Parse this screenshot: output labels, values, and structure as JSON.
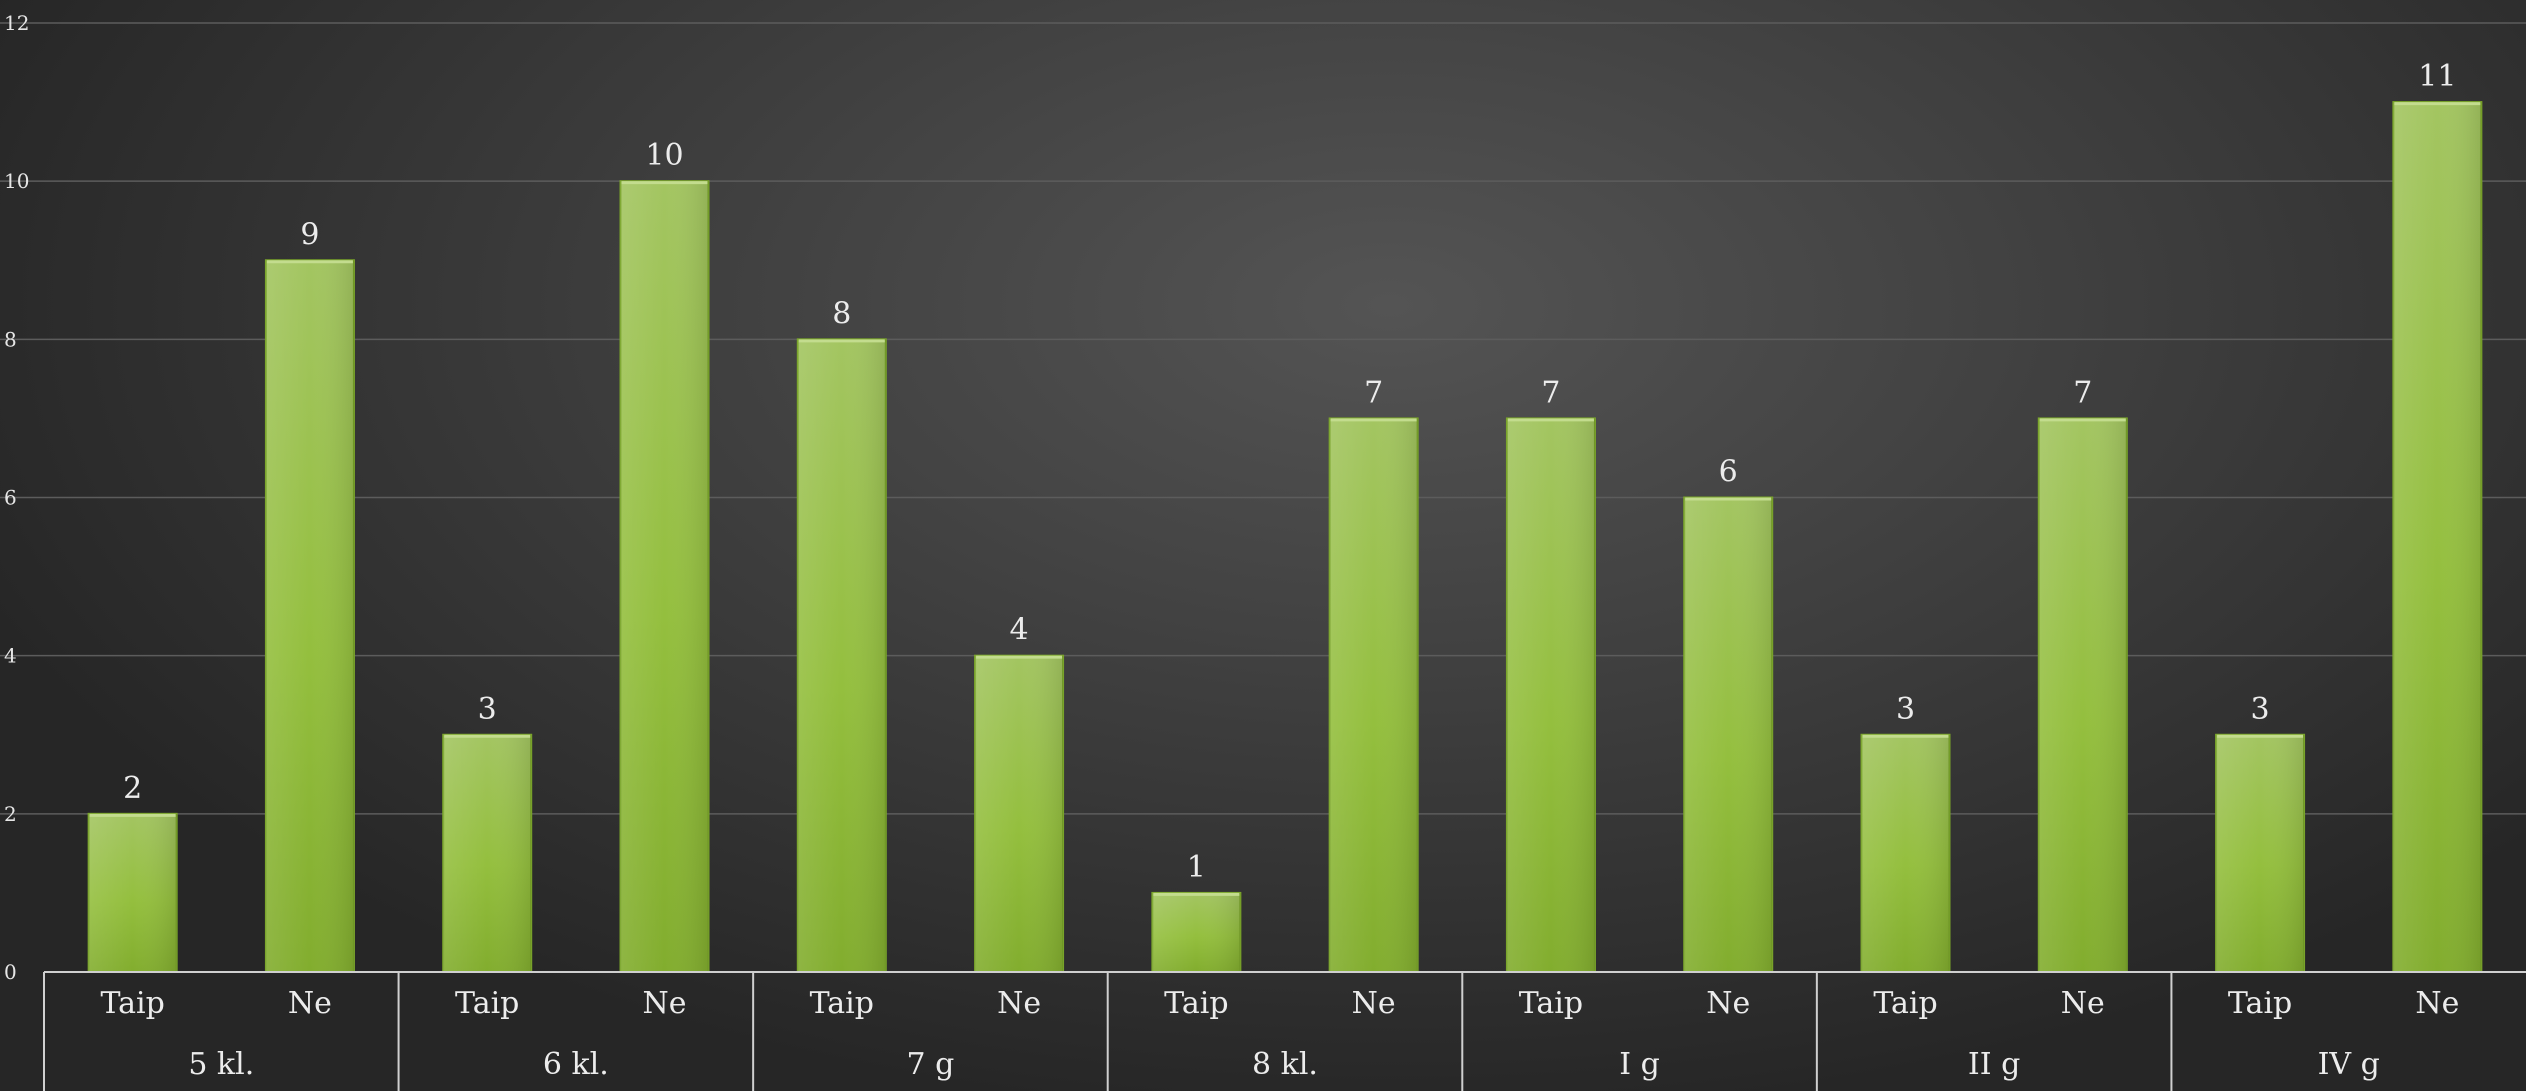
{
  "chart_data": {
    "type": "bar",
    "title": "",
    "xlabel": "",
    "ylabel": "",
    "ylim": [
      0,
      12
    ],
    "yticks": [
      "0",
      "2",
      "4",
      "6",
      "8",
      "10",
      "12"
    ],
    "grid": true,
    "legend": "none",
    "bar_color": "#8cba3c",
    "bar_color_top": "#a3c561",
    "groups": [
      {
        "label": "5 kl.",
        "categories": [
          "Taip",
          "Ne"
        ],
        "values": [
          2,
          9
        ]
      },
      {
        "label": "6 kl.",
        "categories": [
          "Taip",
          "Ne"
        ],
        "values": [
          3,
          10
        ]
      },
      {
        "label": "7 g",
        "categories": [
          "Taip",
          "Ne"
        ],
        "values": [
          8,
          4
        ]
      },
      {
        "label": "8 kl.",
        "categories": [
          "Taip",
          "Ne"
        ],
        "values": [
          1,
          7
        ]
      },
      {
        "label": "I g",
        "categories": [
          "Taip",
          "Ne"
        ],
        "values": [
          7,
          6
        ]
      },
      {
        "label": "II g",
        "categories": [
          "Taip",
          "Ne"
        ],
        "values": [
          3,
          7
        ]
      },
      {
        "label": "IV g",
        "categories": [
          "Taip",
          "Ne"
        ],
        "values": [
          3,
          11
        ]
      }
    ]
  }
}
